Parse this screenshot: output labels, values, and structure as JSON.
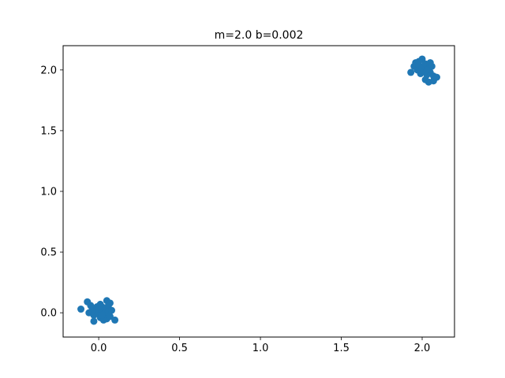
{
  "chart_data": {
    "type": "scatter",
    "title": "m=2.0 b=0.002",
    "xlabel": "",
    "ylabel": "",
    "xlim": [
      -0.22,
      2.2
    ],
    "ylim": [
      -0.2,
      2.2
    ],
    "grid": false,
    "x_ticks": [
      {
        "value": 0.0,
        "label": "0.0"
      },
      {
        "value": 0.5,
        "label": "0.5"
      },
      {
        "value": 1.0,
        "label": "1.0"
      },
      {
        "value": 1.5,
        "label": "1.5"
      },
      {
        "value": 2.0,
        "label": "2.0"
      }
    ],
    "y_ticks": [
      {
        "value": 0.0,
        "label": "0.0"
      },
      {
        "value": 0.5,
        "label": "0.5"
      },
      {
        "value": 1.0,
        "label": "1.0"
      },
      {
        "value": 1.5,
        "label": "1.5"
      },
      {
        "value": 2.0,
        "label": "2.0"
      }
    ],
    "series": [
      {
        "color": "#1f77b4",
        "points": [
          [
            -0.11,
            0.03
          ],
          [
            -0.07,
            0.09
          ],
          [
            -0.06,
            0.0
          ],
          [
            -0.04,
            0.04
          ],
          [
            -0.03,
            -0.02
          ],
          [
            -0.03,
            -0.07
          ],
          [
            -0.02,
            0.02
          ],
          [
            -0.01,
            0.05
          ],
          [
            0.0,
            -0.01
          ],
          [
            0.0,
            0.03
          ],
          [
            0.01,
            0.07
          ],
          [
            0.01,
            -0.04
          ],
          [
            0.02,
            0.01
          ],
          [
            0.02,
            0.05
          ],
          [
            0.03,
            -0.02
          ],
          [
            0.03,
            -0.06
          ],
          [
            0.04,
            0.03
          ],
          [
            0.04,
            0.0
          ],
          [
            0.05,
            0.1
          ],
          [
            0.05,
            -0.05
          ],
          [
            0.06,
            0.06
          ],
          [
            0.06,
            0.01
          ],
          [
            0.07,
            0.08
          ],
          [
            0.07,
            -0.03
          ],
          [
            0.08,
            0.02
          ],
          [
            0.1,
            -0.06
          ],
          [
            -0.05,
            0.06
          ],
          [
            0.02,
            -0.02
          ],
          [
            1.93,
            1.98
          ],
          [
            1.95,
            2.03
          ],
          [
            1.96,
            2.06
          ],
          [
            1.97,
            2.0
          ],
          [
            1.98,
            2.04
          ],
          [
            1.99,
            1.97
          ],
          [
            2.0,
            2.09
          ],
          [
            2.0,
            2.02
          ],
          [
            2.01,
            1.99
          ],
          [
            2.02,
            1.92
          ],
          [
            2.02,
            2.05
          ],
          [
            2.03,
            1.96
          ],
          [
            2.04,
            2.01
          ],
          [
            2.04,
            1.9
          ],
          [
            2.05,
            2.06
          ],
          [
            2.05,
            1.98
          ],
          [
            2.06,
            2.03
          ],
          [
            2.07,
            1.95
          ],
          [
            2.07,
            1.91
          ],
          [
            2.09,
            1.94
          ],
          [
            1.98,
            2.07
          ],
          [
            2.03,
            2.0
          ]
        ]
      }
    ]
  }
}
